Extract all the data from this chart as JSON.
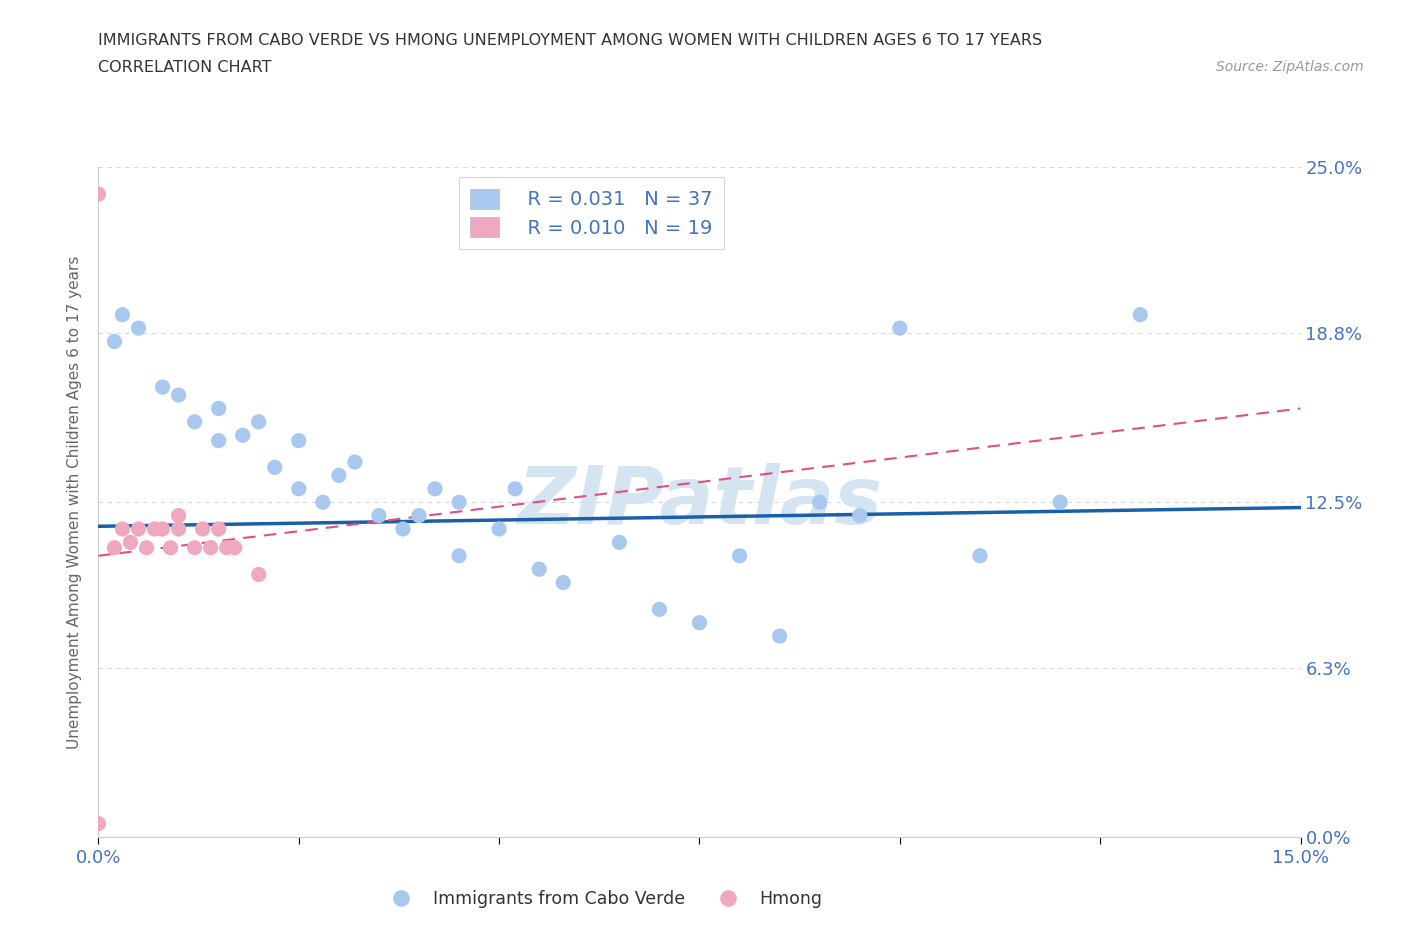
{
  "title_line1": "IMMIGRANTS FROM CABO VERDE VS HMONG UNEMPLOYMENT AMONG WOMEN WITH CHILDREN AGES 6 TO 17 YEARS",
  "title_line2": "CORRELATION CHART",
  "source_text": "Source: ZipAtlas.com",
  "ylabel": "Unemployment Among Women with Children Ages 6 to 17 years",
  "xlim": [
    0.0,
    0.15
  ],
  "ylim": [
    0.0,
    0.25
  ],
  "yticks": [
    0.0,
    0.063,
    0.125,
    0.188,
    0.25
  ],
  "ytick_labels": [
    "0.0%",
    "6.3%",
    "12.5%",
    "18.8%",
    "25.0%"
  ],
  "xticks": [
    0.0,
    0.025,
    0.05,
    0.075,
    0.1,
    0.125,
    0.15
  ],
  "xtick_labels": [
    "0.0%",
    "",
    "",
    "",
    "",
    "",
    "15.0%"
  ],
  "cabo_verde_color": "#a8c8f0",
  "hmong_color": "#f0a8c0",
  "cabo_verde_line_color": "#1a5fa8",
  "hmong_line_color": "#e05080",
  "watermark_color": "#cde0ef",
  "legend_R_cabo": "R = 0.031",
  "legend_N_cabo": "N = 37",
  "legend_R_hmong": "R = 0.010",
  "legend_N_hmong": "N = 19",
  "cabo_verde_x": [
    0.002,
    0.003,
    0.005,
    0.008,
    0.01,
    0.012,
    0.015,
    0.015,
    0.018,
    0.02,
    0.022,
    0.025,
    0.025,
    0.028,
    0.03,
    0.032,
    0.035,
    0.038,
    0.04,
    0.042,
    0.045,
    0.045,
    0.05,
    0.052,
    0.055,
    0.058,
    0.065,
    0.07,
    0.075,
    0.08,
    0.085,
    0.09,
    0.095,
    0.1,
    0.11,
    0.12,
    0.13
  ],
  "cabo_verde_y": [
    0.185,
    0.195,
    0.19,
    0.168,
    0.165,
    0.155,
    0.16,
    0.148,
    0.15,
    0.155,
    0.138,
    0.13,
    0.148,
    0.125,
    0.135,
    0.14,
    0.12,
    0.115,
    0.12,
    0.13,
    0.105,
    0.125,
    0.115,
    0.13,
    0.1,
    0.095,
    0.11,
    0.085,
    0.08,
    0.105,
    0.075,
    0.125,
    0.12,
    0.19,
    0.105,
    0.125,
    0.195
  ],
  "hmong_x": [
    0.0,
    0.0,
    0.002,
    0.003,
    0.004,
    0.005,
    0.006,
    0.007,
    0.008,
    0.009,
    0.01,
    0.01,
    0.012,
    0.013,
    0.014,
    0.015,
    0.016,
    0.017,
    0.02
  ],
  "hmong_y": [
    0.005,
    0.24,
    0.108,
    0.115,
    0.11,
    0.115,
    0.108,
    0.115,
    0.115,
    0.108,
    0.115,
    0.12,
    0.108,
    0.115,
    0.108,
    0.115,
    0.108,
    0.108,
    0.098
  ],
  "cabo_line_x0": 0.0,
  "cabo_line_x1": 0.15,
  "cabo_line_y0": 0.116,
  "cabo_line_y1": 0.123,
  "hmong_line_x0": 0.0,
  "hmong_line_x1": 0.15,
  "hmong_line_y0": 0.105,
  "hmong_line_y1": 0.16,
  "background_color": "#ffffff",
  "grid_color": "#d8d8d8",
  "axis_label_color": "#666666",
  "tick_label_color": "#4472c4"
}
